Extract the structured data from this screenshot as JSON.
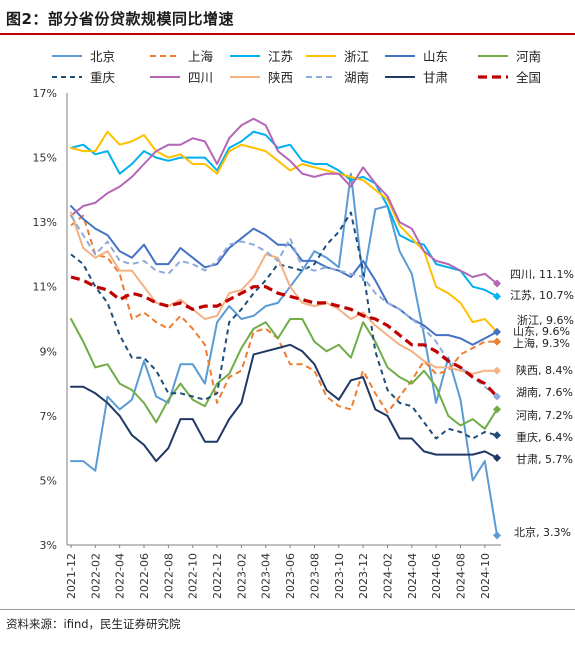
{
  "title": "图2：部分省份贷款规模同比增速",
  "source": "资料来源：ifind，民生证券研究院",
  "chart_data": {
    "type": "line",
    "ylim": [
      3,
      17
    ],
    "yticks": [
      3,
      5,
      7,
      9,
      11,
      13,
      15,
      17
    ],
    "ytick_labels": [
      "3%",
      "5%",
      "7%",
      "9%",
      "11%",
      "13%",
      "15%",
      "17%"
    ],
    "x_ticks": [
      "2021-12",
      "2022-02",
      "2022-04",
      "2022-06",
      "2022-08",
      "2022-10",
      "2022-12",
      "2023-02",
      "2023-04",
      "2023-06",
      "2023-08",
      "2023-10",
      "2023-12",
      "2024-02",
      "2024-04",
      "2024-06",
      "2024-08",
      "2024-10"
    ],
    "x": [
      "2021-12",
      "2022-01",
      "2022-02",
      "2022-03",
      "2022-04",
      "2022-05",
      "2022-06",
      "2022-07",
      "2022-08",
      "2022-09",
      "2022-10",
      "2022-11",
      "2022-12",
      "2023-01",
      "2023-02",
      "2023-03",
      "2023-04",
      "2023-05",
      "2023-06",
      "2023-07",
      "2023-08",
      "2023-09",
      "2023-10",
      "2023-11",
      "2023-12",
      "2024-01",
      "2024-02",
      "2024-03",
      "2024-04",
      "2024-05",
      "2024-06",
      "2024-07",
      "2024-08",
      "2024-09",
      "2024-10",
      "2024-11"
    ],
    "grid": false,
    "legend_position": "top",
    "series": [
      {
        "name": "北京",
        "color": "#5b9bd5",
        "dash": "solid",
        "width": 2,
        "end_label": "北京, 3.3%",
        "values": [
          5.6,
          5.6,
          5.3,
          7.6,
          7.2,
          7.5,
          8.7,
          7.6,
          7.4,
          8.6,
          8.6,
          8.0,
          9.9,
          10.4,
          10.0,
          10.1,
          10.4,
          10.5,
          11.0,
          11.5,
          12.1,
          11.9,
          11.6,
          14.5,
          11.2,
          13.4,
          13.5,
          12.1,
          11.4,
          9.5,
          7.4,
          8.8,
          7.5,
          5.0,
          5.6,
          3.3
        ]
      },
      {
        "name": "上海",
        "color": "#ed7d31",
        "dash": "6,4",
        "width": 2,
        "end_label": "上海, 9.3%",
        "values": [
          12.9,
          13.2,
          12.0,
          11.9,
          11.4,
          10.0,
          10.2,
          9.9,
          9.7,
          10.1,
          9.7,
          9.2,
          7.4,
          8.2,
          8.4,
          9.6,
          9.7,
          9.4,
          8.6,
          8.6,
          8.4,
          7.6,
          7.3,
          7.2,
          8.4,
          7.7,
          7.1,
          7.6,
          8.1,
          8.7,
          8.3,
          8.4,
          8.9,
          9.1,
          9.3,
          9.3
        ]
      },
      {
        "name": "江苏",
        "color": "#00b0f0",
        "dash": "solid",
        "width": 2,
        "end_label": "江苏, 10.7%",
        "values": [
          15.3,
          15.4,
          15.1,
          15.2,
          14.5,
          14.8,
          15.2,
          15.0,
          14.9,
          15.0,
          15.0,
          15.0,
          14.6,
          15.3,
          15.5,
          15.8,
          15.7,
          15.3,
          15.4,
          14.9,
          14.8,
          14.8,
          14.6,
          14.3,
          14.4,
          14.2,
          13.5,
          12.6,
          12.4,
          12.3,
          11.7,
          11.6,
          11.5,
          11.0,
          10.9,
          10.7
        ]
      },
      {
        "name": "浙江",
        "color": "#ffc000",
        "dash": "solid",
        "width": 2,
        "end_label": "浙江, 9.6%",
        "values": [
          15.3,
          15.2,
          15.2,
          15.8,
          15.4,
          15.5,
          15.7,
          15.2,
          15.0,
          15.1,
          14.8,
          14.8,
          14.5,
          15.2,
          15.4,
          15.3,
          15.2,
          14.9,
          14.6,
          14.8,
          14.7,
          14.6,
          14.5,
          14.4,
          14.3,
          14.0,
          13.7,
          12.9,
          12.5,
          12.1,
          11.0,
          10.8,
          10.5,
          9.9,
          10.0,
          9.6
        ]
      },
      {
        "name": "山东",
        "color": "#4472c4",
        "dash": "solid",
        "width": 2,
        "end_label": "山东, 9.6%",
        "values": [
          13.5,
          13.1,
          12.8,
          12.6,
          12.1,
          11.9,
          12.3,
          11.7,
          11.7,
          12.2,
          11.9,
          11.6,
          11.7,
          12.2,
          12.5,
          12.8,
          12.6,
          12.3,
          12.3,
          11.8,
          11.8,
          11.6,
          11.5,
          11.3,
          11.8,
          11.2,
          10.5,
          10.3,
          10.0,
          9.8,
          9.5,
          9.5,
          9.4,
          9.2,
          9.4,
          9.6
        ]
      },
      {
        "name": "河南",
        "color": "#70ad47",
        "dash": "solid",
        "width": 2,
        "end_label": "河南, 7.2%",
        "values": [
          10.0,
          9.3,
          8.5,
          8.6,
          8.0,
          7.8,
          7.4,
          6.8,
          7.5,
          8.0,
          7.5,
          7.3,
          8.0,
          8.3,
          9.1,
          9.7,
          9.9,
          9.4,
          10.0,
          10.0,
          9.3,
          9.0,
          9.2,
          8.8,
          9.9,
          9.3,
          8.5,
          8.2,
          8.0,
          8.4,
          7.9,
          7.0,
          6.7,
          6.9,
          6.6,
          7.2
        ]
      },
      {
        "name": "重庆",
        "color": "#1f4e79",
        "dash": "5,4",
        "width": 2,
        "end_label": "重庆, 6.4%",
        "values": [
          12.0,
          11.7,
          11.0,
          10.5,
          9.5,
          8.8,
          8.8,
          8.4,
          7.7,
          7.7,
          7.6,
          7.5,
          7.7,
          9.9,
          10.3,
          10.8,
          11.2,
          11.7,
          11.6,
          11.5,
          11.7,
          12.3,
          12.7,
          13.3,
          11.5,
          9.0,
          7.8,
          7.4,
          7.3,
          6.8,
          6.3,
          6.6,
          6.5,
          6.3,
          6.5,
          6.4
        ]
      },
      {
        "name": "四川",
        "color": "#b565b5",
        "dash": "solid",
        "width": 2,
        "end_label": "四川, 11.1%",
        "values": [
          13.2,
          13.5,
          13.6,
          13.9,
          14.1,
          14.4,
          14.8,
          15.2,
          15.4,
          15.4,
          15.6,
          15.5,
          14.8,
          15.6,
          16.0,
          16.2,
          16.0,
          15.2,
          14.9,
          14.5,
          14.4,
          14.5,
          14.5,
          14.1,
          14.7,
          14.2,
          13.8,
          13.0,
          12.8,
          12.1,
          11.8,
          11.7,
          11.5,
          11.3,
          11.4,
          11.1
        ]
      },
      {
        "name": "陕西",
        "color": "#f4b183",
        "dash": "solid",
        "width": 2,
        "end_label": "陕西, 8.4%",
        "values": [
          13.3,
          12.2,
          11.9,
          12.1,
          11.5,
          11.5,
          11.0,
          10.5,
          10.4,
          10.6,
          10.3,
          10.0,
          10.1,
          10.8,
          10.9,
          11.3,
          12.0,
          11.9,
          11.0,
          10.5,
          10.4,
          10.5,
          10.3,
          10.0,
          10.2,
          9.8,
          9.5,
          9.2,
          9.0,
          8.7,
          8.5,
          8.5,
          8.4,
          8.3,
          8.4,
          8.4
        ]
      },
      {
        "name": "湖南",
        "color": "#8eaadb",
        "dash": "6,4",
        "width": 2,
        "end_label": "湖南, 7.6%",
        "values": [
          13.2,
          12.6,
          12.0,
          12.4,
          11.8,
          11.7,
          11.8,
          11.5,
          11.4,
          11.8,
          11.7,
          11.5,
          11.8,
          12.3,
          12.4,
          12.3,
          12.1,
          11.8,
          12.5,
          11.6,
          11.5,
          11.6,
          11.5,
          11.4,
          11.3,
          10.8,
          10.5,
          10.3,
          10.0,
          9.7,
          9.3,
          8.7,
          8.5,
          8.2,
          7.9,
          7.6
        ]
      },
      {
        "name": "甘肃",
        "color": "#203864",
        "dash": "solid",
        "width": 2,
        "end_label": "甘肃, 5.7%",
        "values": [
          7.9,
          7.9,
          7.7,
          7.4,
          7.0,
          6.4,
          6.1,
          5.6,
          6.0,
          6.9,
          6.9,
          6.2,
          6.2,
          6.9,
          7.4,
          8.9,
          9.0,
          9.1,
          9.2,
          9.0,
          8.6,
          7.8,
          7.5,
          8.1,
          8.2,
          7.2,
          7.0,
          6.3,
          6.3,
          5.9,
          5.8,
          5.8,
          5.8,
          5.8,
          5.9,
          5.7
        ]
      },
      {
        "name": "全国",
        "color": "#c00000",
        "dash": "9,5",
        "width": 3.2,
        "end_label": "",
        "values": [
          11.3,
          11.2,
          11.0,
          10.9,
          10.6,
          10.8,
          10.7,
          10.5,
          10.4,
          10.5,
          10.3,
          10.4,
          10.4,
          10.6,
          10.8,
          11.0,
          11.0,
          10.8,
          10.7,
          10.6,
          10.5,
          10.5,
          10.4,
          10.3,
          10.1,
          10.0,
          9.8,
          9.5,
          9.2,
          9.2,
          9.0,
          8.7,
          8.5,
          8.2,
          8.0,
          7.6
        ]
      }
    ]
  }
}
